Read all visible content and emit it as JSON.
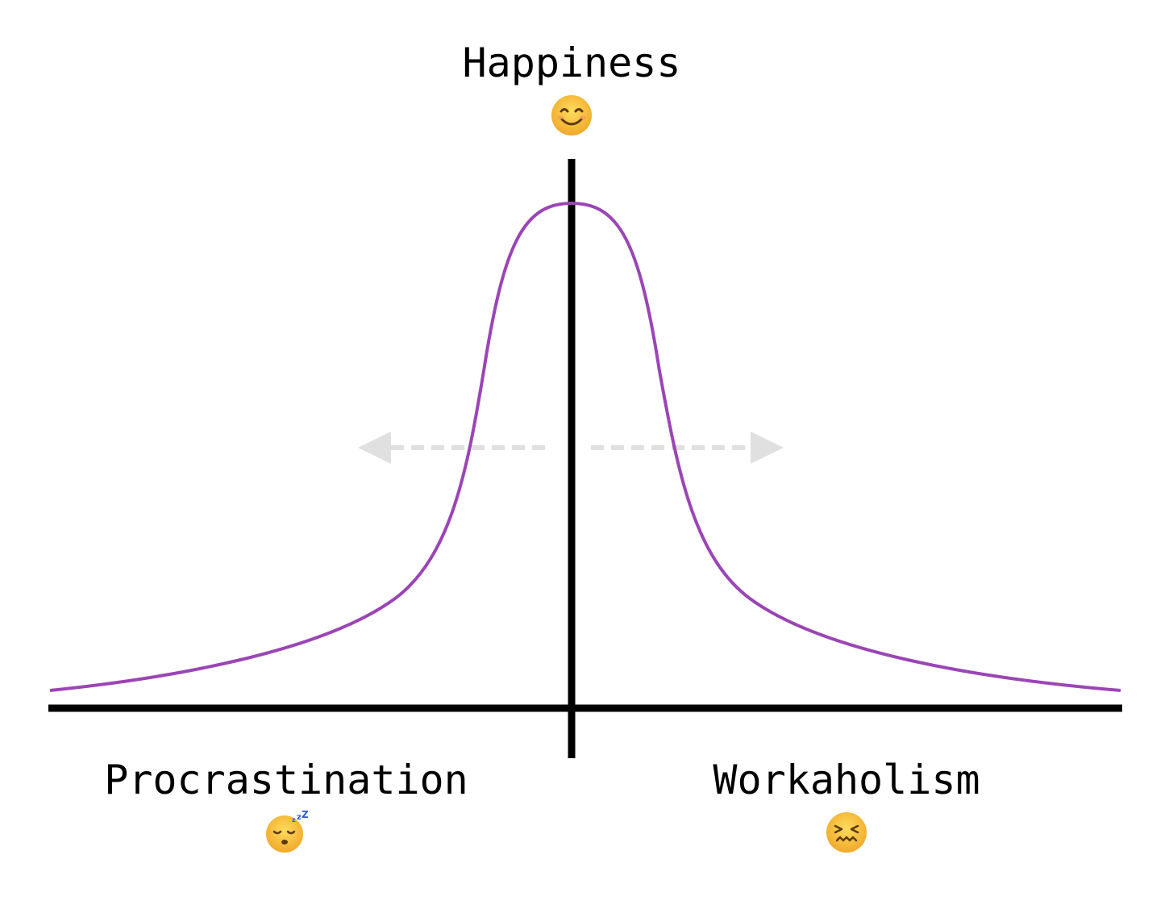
{
  "labels": {
    "top": "Happiness",
    "bottom_left": "Procrastination",
    "bottom_right": "Workaholism"
  },
  "icons": {
    "top": "smiling-face-icon",
    "bottom_left": "sleeping-face-icon",
    "bottom_right": "confounded-face-icon"
  },
  "colors": {
    "curve": "#9b45b5",
    "axis": "#000000",
    "arrow": "#e0e0e0",
    "emoji_face": "#f7c53a"
  }
}
